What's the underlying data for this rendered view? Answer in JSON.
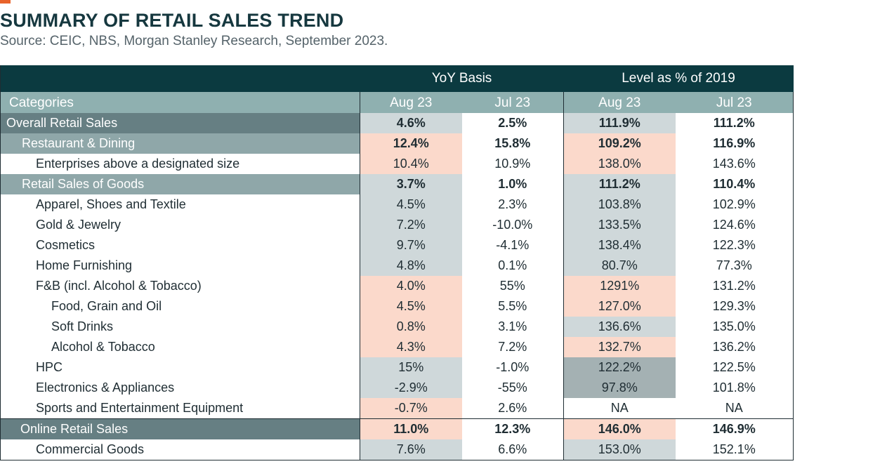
{
  "header": {
    "title": "SUMMARY OF RETAIL SALES TREND",
    "source": "Source: CEIC, NBS, Morgan Stanley Research, September 2023."
  },
  "table": {
    "group_headers": [
      "YoY Basis",
      "Level as % of 2019"
    ],
    "col_headers": [
      "Categories",
      "Aug 23",
      "Jul 23",
      "Aug 23",
      "Jul 23"
    ],
    "rows": [
      {
        "label": "Overall Retail Sales",
        "values": [
          "4.6%",
          "2.5%",
          "111.9%",
          "111.2%"
        ]
      },
      {
        "label": "Restaurant & Dining",
        "values": [
          "12.4%",
          "15.8%",
          "109.2%",
          "116.9%"
        ]
      },
      {
        "label": "Enterprises above a designated size",
        "values": [
          "10.4%",
          "10.9%",
          "138.0%",
          "143.6%"
        ]
      },
      {
        "label": "Retail Sales of Goods",
        "values": [
          "3.7%",
          "1.0%",
          "111.2%",
          "110.4%"
        ]
      },
      {
        "label": "Apparel, Shoes and Textile",
        "values": [
          "4.5%",
          "2.3%",
          "103.8%",
          "102.9%"
        ]
      },
      {
        "label": "Gold & Jewelry",
        "values": [
          "7.2%",
          "-10.0%",
          "133.5%",
          "124.6%"
        ]
      },
      {
        "label": "Cosmetics",
        "values": [
          "9.7%",
          "-4.1%",
          "138.4%",
          "122.3%"
        ]
      },
      {
        "label": "Home Furnishing",
        "values": [
          "4.8%",
          "0.1%",
          "80.7%",
          "77.3%"
        ]
      },
      {
        "label": "F&B (incl. Alcohol & Tobacco)",
        "values": [
          "4.0%",
          "55%",
          "1291%",
          "131.2%"
        ]
      },
      {
        "label": "Food, Grain and Oil",
        "values": [
          "4.5%",
          "5.5%",
          "127.0%",
          "129.3%"
        ]
      },
      {
        "label": "Soft Drinks",
        "values": [
          "0.8%",
          "3.1%",
          "136.6%",
          "135.0%"
        ]
      },
      {
        "label": "Alcohol & Tobacco",
        "values": [
          "4.3%",
          "7.2%",
          "132.7%",
          "136.2%"
        ]
      },
      {
        "label": "HPC",
        "values": [
          "15%",
          "-1.0%",
          "122.2%",
          "122.5%"
        ]
      },
      {
        "label": "Electronics & Appliances",
        "values": [
          "-2.9%",
          "-55%",
          "97.8%",
          "101.8%"
        ]
      },
      {
        "label": "Sports and Entertainment Equipment",
        "values": [
          "-0.7%",
          "2.6%",
          "NA",
          "NA"
        ]
      },
      {
        "label": "Online Retail Sales",
        "values": [
          "11.0%",
          "12.3%",
          "146.0%",
          "146.9%"
        ]
      },
      {
        "label": "Commercial Goods",
        "values": [
          "7.6%",
          "6.6%",
          "153.0%",
          "152.1%"
        ]
      }
    ]
  },
  "colors": {
    "header_dark": "#0b3a40",
    "header_light": "#8fb0b0",
    "cell_gray": "#cfd8da",
    "cell_peach": "#fbd9cb",
    "cell_dark_gray": "#a4b1b3",
    "accent": "#e8632b"
  }
}
